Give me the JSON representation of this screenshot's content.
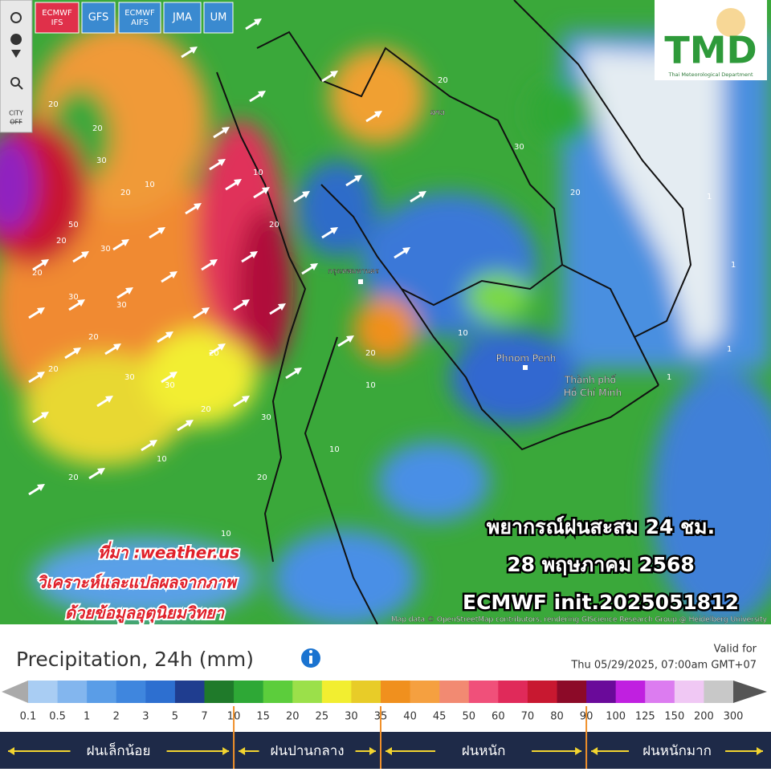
{
  "toolbar": {
    "city_button": {
      "top": "CITY",
      "bottom": "OFF"
    }
  },
  "models": [
    {
      "lines": [
        "ECMWF",
        "IFS"
      ],
      "selected": true
    },
    {
      "lines": [
        "GFS"
      ],
      "selected": false
    },
    {
      "lines": [
        "ECMWF",
        "AIFS"
      ],
      "selected": false
    },
    {
      "lines": [
        "JMA"
      ],
      "selected": false
    },
    {
      "lines": [
        "UM"
      ],
      "selected": false
    }
  ],
  "logo": {
    "text": "TMD",
    "subtitle": "Thai Meteorological Department"
  },
  "map": {
    "cities": [
      "Phnom Penh",
      "Thành phố",
      "Hồ Chí Minh",
      "กรุงเทพมหานคร",
      "ລາວ"
    ],
    "contour_labels": [
      30,
      20,
      20,
      30,
      20,
      10,
      20,
      30,
      20,
      30,
      50,
      20,
      30,
      20,
      30,
      30,
      20,
      20,
      30,
      10,
      20,
      20,
      10,
      10,
      20,
      30,
      20,
      1,
      1,
      1,
      1,
      10,
      20,
      10,
      10,
      20
    ],
    "overlay": [
      "พยากรณ์ฝนสะสม 24 ชม.",
      "28 พฤษภาคม 2568",
      "ECMWF init.2025051812"
    ],
    "credits": [
      "ที่มา :weather.us",
      "วิเคราะห์และแปลผลจากภาพ",
      "ด้วยข้อมูลอุตุนิยมวิทยา"
    ],
    "attribution": "Map data © OpenStreetMap contributors, rendering GIScience Research Group @ Heidelberg University"
  },
  "legend": {
    "title": "Precipitation, 24h (mm)",
    "valid_for": "Valid for",
    "valid_time": "Thu 05/29/2025, 07:00am GMT+07",
    "scale": [
      0.1,
      0.5,
      1,
      2,
      3,
      5,
      7,
      10,
      15,
      20,
      25,
      30,
      35,
      40,
      45,
      50,
      60,
      70,
      80,
      90,
      100,
      125,
      150,
      200,
      300
    ],
    "colors": [
      "#a9cdf3",
      "#83b6ee",
      "#5a9de7",
      "#3f86de",
      "#2d6fd0",
      "#1f3d8f",
      "#1f7a2a",
      "#2ea836",
      "#5ccd3c",
      "#9be04a",
      "#f2ee30",
      "#e8cc28",
      "#f0901e",
      "#f5a040",
      "#f28a72",
      "#f0507a",
      "#e02a5a",
      "#c81830",
      "#8c0a28",
      "#6a0a9a",
      "#c020e0",
      "#dc7cf0",
      "#f0c8f4",
      "#c8c8c8"
    ],
    "categories": [
      "ฝนเล็กน้อย",
      "ฝนปานกลาง",
      "ฝนหนัก",
      "ฝนหนักมาก"
    ]
  }
}
